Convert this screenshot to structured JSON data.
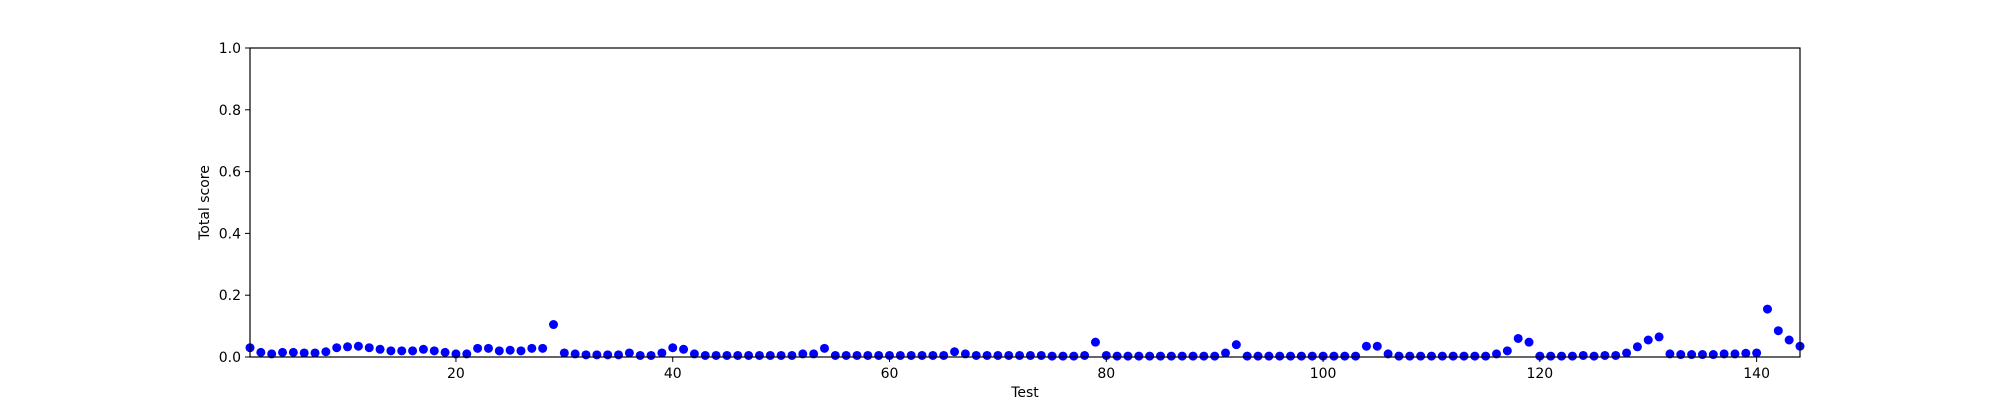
{
  "chart_data": {
    "type": "scatter",
    "title": "",
    "xlabel": "Test",
    "ylabel": "Total score",
    "xlim": [
      1,
      144
    ],
    "ylim": [
      0.0,
      1.0
    ],
    "x_ticks": [
      20,
      40,
      60,
      80,
      100,
      120,
      140
    ],
    "y_ticks": [
      0.0,
      0.2,
      0.4,
      0.6,
      0.8,
      1.0
    ],
    "y_tick_labels": [
      "0.0",
      "0.2",
      "0.4",
      "0.6",
      "0.8",
      "1.0"
    ],
    "grid": false,
    "legend": "none",
    "marker_color": "#0000ff",
    "x": [
      1,
      2,
      3,
      4,
      5,
      6,
      7,
      8,
      9,
      10,
      11,
      12,
      13,
      14,
      15,
      16,
      17,
      18,
      19,
      20,
      21,
      22,
      23,
      24,
      25,
      26,
      27,
      28,
      29,
      30,
      31,
      32,
      33,
      34,
      35,
      36,
      37,
      38,
      39,
      40,
      41,
      42,
      43,
      44,
      45,
      46,
      47,
      48,
      49,
      50,
      51,
      52,
      53,
      54,
      55,
      56,
      57,
      58,
      59,
      60,
      61,
      62,
      63,
      64,
      65,
      66,
      67,
      68,
      69,
      70,
      71,
      72,
      73,
      74,
      75,
      76,
      77,
      78,
      79,
      80,
      81,
      82,
      83,
      84,
      85,
      86,
      87,
      88,
      89,
      90,
      91,
      92,
      93,
      94,
      95,
      96,
      97,
      98,
      99,
      100,
      101,
      102,
      103,
      104,
      105,
      106,
      107,
      108,
      109,
      110,
      111,
      112,
      113,
      114,
      115,
      116,
      117,
      118,
      119,
      120,
      121,
      122,
      123,
      124,
      125,
      126,
      127,
      128,
      129,
      130,
      131,
      132,
      133,
      134,
      135,
      136,
      137,
      138,
      139,
      140,
      141,
      142,
      143,
      144
    ],
    "y": [
      0.03,
      0.015,
      0.01,
      0.015,
      0.015,
      0.013,
      0.013,
      0.017,
      0.03,
      0.033,
      0.035,
      0.03,
      0.025,
      0.02,
      0.02,
      0.02,
      0.025,
      0.02,
      0.015,
      0.01,
      0.01,
      0.028,
      0.028,
      0.02,
      0.022,
      0.02,
      0.028,
      0.028,
      0.105,
      0.013,
      0.01,
      0.007,
      0.007,
      0.007,
      0.007,
      0.013,
      0.005,
      0.005,
      0.013,
      0.03,
      0.025,
      0.01,
      0.005,
      0.005,
      0.005,
      0.005,
      0.005,
      0.005,
      0.005,
      0.005,
      0.005,
      0.01,
      0.01,
      0.028,
      0.005,
      0.005,
      0.005,
      0.005,
      0.005,
      0.005,
      0.005,
      0.005,
      0.005,
      0.005,
      0.005,
      0.017,
      0.01,
      0.005,
      0.005,
      0.005,
      0.005,
      0.005,
      0.005,
      0.005,
      0.003,
      0.003,
      0.003,
      0.005,
      0.048,
      0.005,
      0.003,
      0.003,
      0.003,
      0.003,
      0.003,
      0.003,
      0.003,
      0.003,
      0.003,
      0.003,
      0.013,
      0.04,
      0.003,
      0.003,
      0.003,
      0.003,
      0.003,
      0.003,
      0.003,
      0.003,
      0.003,
      0.003,
      0.003,
      0.035,
      0.035,
      0.01,
      0.003,
      0.003,
      0.003,
      0.003,
      0.003,
      0.003,
      0.003,
      0.003,
      0.003,
      0.01,
      0.02,
      0.06,
      0.048,
      0.003,
      0.003,
      0.003,
      0.003,
      0.005,
      0.003,
      0.005,
      0.005,
      0.013,
      0.033,
      0.055,
      0.065,
      0.01,
      0.008,
      0.008,
      0.008,
      0.008,
      0.01,
      0.01,
      0.012,
      0.013,
      0.155,
      0.085,
      0.055,
      0.035
    ]
  }
}
